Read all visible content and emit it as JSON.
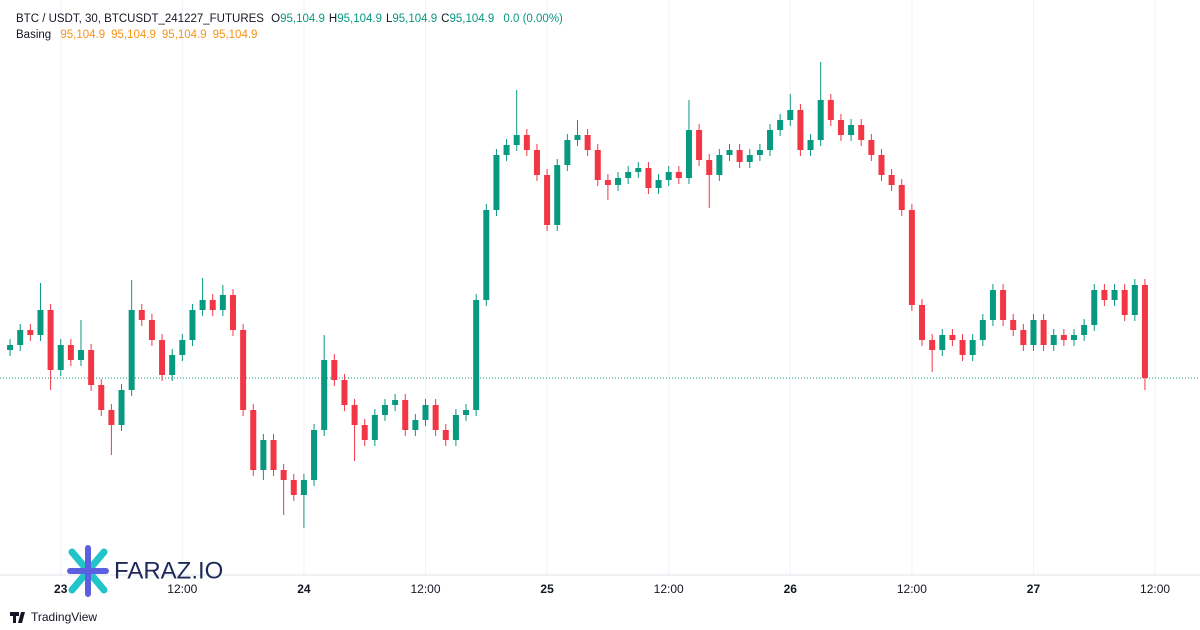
{
  "header": {
    "symbol": "BTC / USDT, 30, BTCUSDT_241227_FUTURES",
    "ohlc": [
      {
        "key": "O",
        "value": "95,104.9"
      },
      {
        "key": "H",
        "value": "95,104.9"
      },
      {
        "key": "L",
        "value": "95,104.9"
      },
      {
        "key": "C",
        "value": "95,104.9"
      }
    ],
    "change": "0.0 (0.00%)"
  },
  "indicator": {
    "name": "Basing",
    "values": [
      "95,104.9",
      "95,104.9",
      "95,104.9",
      "95,104.9"
    ]
  },
  "logo": "FARAZ.IO",
  "brand": "TradingView",
  "chart_data": {
    "type": "candlestick",
    "up_color": "#089981",
    "down_color": "#f23645",
    "last_price": 95104.9,
    "xlim": [
      -0.5,
      112.5
    ],
    "ylim": [
      93135,
      98435
    ],
    "xticks": [
      {
        "value": 5,
        "label": "23"
      },
      {
        "value": 17,
        "label": "12:00"
      },
      {
        "value": 29,
        "label": "24"
      },
      {
        "value": 41,
        "label": "12:00"
      },
      {
        "value": 53,
        "label": "25"
      },
      {
        "value": 65,
        "label": "12:00"
      },
      {
        "value": 77,
        "label": "26"
      },
      {
        "value": 89,
        "label": "12:00"
      },
      {
        "value": 101,
        "label": "27"
      },
      {
        "value": 113,
        "label": "12:00"
      }
    ],
    "open": [
      95385,
      95435,
      95585,
      95535,
      95785,
      95185,
      95435,
      95285,
      95385,
      95035,
      94785,
      94635,
      94985,
      95785,
      95685,
      95485,
      95135,
      95335,
      95485,
      95785,
      95885,
      95785,
      95935,
      95585,
      94785,
      94185,
      94485,
      94185,
      94085,
      93935,
      94085,
      94585,
      95285,
      95085,
      94835,
      94635,
      94485,
      94735,
      94835,
      94885,
      94585,
      94685,
      94835,
      94585,
      94485,
      94735,
      94785,
      95885,
      96785,
      97335,
      97435,
      97535,
      97385,
      97135,
      96635,
      97235,
      97485,
      97535,
      97385,
      97085,
      97035,
      97105,
      97165,
      97205,
      97005,
      97085,
      97165,
      97105,
      97585,
      97285,
      97135,
      97335,
      97385,
      97265,
      97335,
      97385,
      97585,
      97685,
      97785,
      97385,
      97485,
      97885,
      97685,
      97535,
      97635,
      97485,
      97335,
      97135,
      97035,
      96785,
      95835,
      95485,
      95385,
      95535,
      95485,
      95335,
      95485,
      95685,
      95985,
      95685,
      95585,
      95435,
      95685,
      95435,
      95535,
      95485,
      95535,
      95635,
      95985,
      95885,
      95985,
      95735,
      96035
    ],
    "high": [
      95495,
      95645,
      95645,
      96055,
      95845,
      95495,
      95495,
      95685,
      95445,
      95095,
      94845,
      95045,
      96085,
      95845,
      95745,
      95545,
      95395,
      95545,
      95845,
      96105,
      95945,
      96035,
      95995,
      95645,
      94845,
      94545,
      94545,
      94245,
      94145,
      94145,
      94645,
      95535,
      95345,
      95145,
      94895,
      94695,
      94795,
      94895,
      94945,
      94945,
      94745,
      94895,
      94895,
      94645,
      94795,
      94845,
      95945,
      96845,
      97395,
      97495,
      97985,
      97595,
      97445,
      97195,
      97295,
      97545,
      97685,
      97595,
      97445,
      97145,
      97165,
      97225,
      97265,
      97265,
      97145,
      97225,
      97225,
      97885,
      97645,
      97345,
      97395,
      97445,
      97445,
      97395,
      97445,
      97645,
      97745,
      97945,
      97845,
      97545,
      98265,
      97945,
      97745,
      97695,
      97695,
      97545,
      97395,
      97195,
      97095,
      96845,
      95895,
      95545,
      95595,
      95595,
      95545,
      95545,
      95745,
      96045,
      96045,
      95745,
      95645,
      95745,
      95745,
      95595,
      95595,
      95595,
      95695,
      96045,
      96045,
      96045,
      96045,
      96095,
      96095
    ],
    "low": [
      95325,
      95375,
      95475,
      95475,
      94985,
      95125,
      95225,
      95225,
      94975,
      94725,
      94335,
      94575,
      94925,
      95625,
      95425,
      95075,
      95075,
      95275,
      95425,
      95725,
      95725,
      95725,
      95525,
      94725,
      94125,
      94085,
      94125,
      93735,
      93875,
      93605,
      94025,
      94525,
      95025,
      94775,
      94275,
      94425,
      94425,
      94675,
      94775,
      94525,
      94525,
      94625,
      94525,
      94425,
      94425,
      94675,
      94725,
      95825,
      96725,
      97275,
      97375,
      97325,
      97075,
      96575,
      96575,
      97175,
      97425,
      97325,
      97025,
      96885,
      96975,
      97045,
      97105,
      96945,
      96945,
      97025,
      97045,
      97045,
      97225,
      96805,
      97075,
      97275,
      97205,
      97205,
      97275,
      97325,
      97525,
      97625,
      97325,
      97325,
      97425,
      97625,
      97475,
      97475,
      97425,
      97275,
      97075,
      96975,
      96725,
      95775,
      95425,
      95165,
      95325,
      95425,
      95275,
      95275,
      95425,
      95625,
      95625,
      95525,
      95375,
      95375,
      95375,
      95375,
      95425,
      95425,
      95475,
      95575,
      95825,
      95825,
      95675,
      95675,
      94985
    ],
    "close": [
      95435,
      95585,
      95535,
      95785,
      95185,
      95435,
      95285,
      95385,
      95035,
      94785,
      94635,
      94985,
      95785,
      95685,
      95485,
      95135,
      95335,
      95485,
      95785,
      95885,
      95785,
      95935,
      95585,
      94785,
      94185,
      94485,
      94185,
      94085,
      93935,
      94085,
      94585,
      95285,
      95085,
      94835,
      94635,
      94485,
      94735,
      94835,
      94885,
      94585,
      94685,
      94835,
      94585,
      94485,
      94735,
      94785,
      95885,
      96785,
      97335,
      97435,
      97535,
      97385,
      97135,
      96635,
      97235,
      97485,
      97535,
      97385,
      97085,
      97035,
      97105,
      97165,
      97205,
      97005,
      97085,
      97165,
      97105,
      97585,
      97285,
      97135,
      97335,
      97385,
      97265,
      97335,
      97385,
      97585,
      97685,
      97785,
      97385,
      97485,
      97885,
      97685,
      97535,
      97635,
      97485,
      97335,
      97135,
      97035,
      96785,
      95835,
      95485,
      95385,
      95535,
      95485,
      95335,
      95485,
      95685,
      95985,
      95685,
      95585,
      95435,
      95685,
      95435,
      95535,
      95485,
      95535,
      95635,
      95985,
      95885,
      95985,
      95735,
      96035,
      95105
    ]
  }
}
